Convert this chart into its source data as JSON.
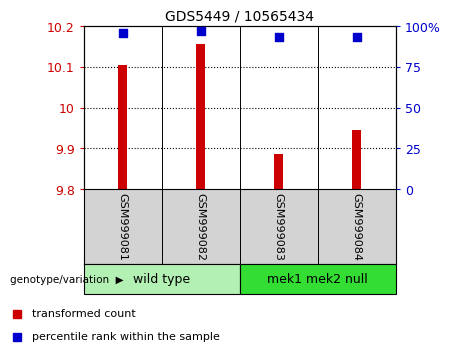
{
  "title": "GDS5449 / 10565434",
  "samples": [
    "GSM999081",
    "GSM999082",
    "GSM999083",
    "GSM999084"
  ],
  "transformed_counts": [
    10.105,
    10.155,
    9.885,
    9.945
  ],
  "percentile_ranks": [
    96,
    97,
    93,
    93
  ],
  "ylim_left": [
    9.8,
    10.2
  ],
  "ylim_right": [
    0,
    100
  ],
  "yticks_left": [
    9.8,
    9.9,
    10.0,
    10.1,
    10.2
  ],
  "yticks_right": [
    0,
    25,
    50,
    75,
    100
  ],
  "ytick_labels_left": [
    "9.8",
    "9.9",
    "10",
    "10.1",
    "10.2"
  ],
  "ytick_labels_right": [
    "0",
    "25",
    "50",
    "75",
    "100%"
  ],
  "left_color": "#cc0000",
  "right_color": "#0000cc",
  "bar_color": "#cc0000",
  "dot_color": "#0000cc",
  "bar_width": 0.12,
  "group_label": "genotype/variation",
  "legend_bar": "transformed count",
  "legend_dot": "percentile rank within the sample",
  "bg_color_xlabel": "#d3d3d3",
  "bg_color_group_wt": "#b3f0b3",
  "bg_color_group_mek": "#33dd33",
  "grid_lines": [
    9.9,
    10.0,
    10.1
  ],
  "vlines": [
    0.5,
    1.5,
    2.5
  ],
  "xlim": [
    -0.5,
    3.5
  ],
  "wt_group": [
    0,
    1
  ],
  "mek_group": [
    2,
    3
  ]
}
